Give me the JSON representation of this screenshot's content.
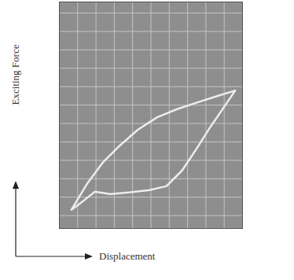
{
  "chart_data": {
    "type": "line",
    "x_label": "Displacement",
    "y_label": "Exciting Force",
    "x": [
      -4.34,
      -3.49,
      -2.64,
      -1.79,
      -0.72,
      0.34,
      1.4,
      2.68,
      3.74,
      4.6,
      3.96,
      3.23,
      2.47,
      1.7,
      0.85,
      -0.09,
      -1.15,
      -2.21,
      -3.06,
      -3.49,
      -3.91,
      -4.34
    ],
    "values": [
      -4.68,
      -3.28,
      -2.13,
      -1.28,
      -0.34,
      0.34,
      0.77,
      1.19,
      1.53,
      1.79,
      0.85,
      -0.21,
      -1.4,
      -2.55,
      -3.4,
      -3.62,
      -3.74,
      -3.83,
      -3.7,
      -4.04,
      -4.38,
      -4.68
    ],
    "color": "#ececec",
    "xlim": [
      -5,
      5
    ],
    "ylim": [
      -5.7,
      6.6
    ],
    "xticks": [
      -4,
      -3,
      -2,
      -1,
      0,
      1,
      2,
      3,
      4
    ],
    "yticks": [
      -5,
      -4,
      -3,
      -2,
      -1,
      0,
      1,
      2,
      3,
      4,
      5,
      6
    ],
    "grid": true,
    "tick_labels": false
  }
}
